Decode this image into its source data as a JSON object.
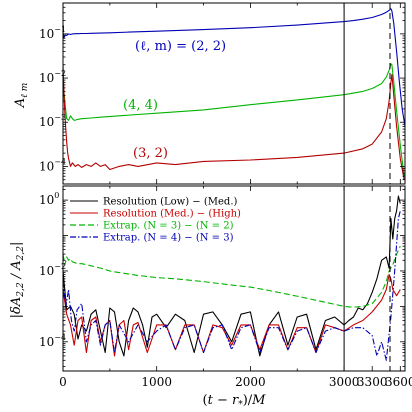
{
  "chart_data": [
    {
      "panel": "top",
      "type": "line",
      "ylabel": "A_{ℓ m}",
      "yscale": "log",
      "ylim": [
        4e-05,
        0.5
      ],
      "yticks": [
        0.0001,
        0.001,
        0.01,
        0.1
      ],
      "ytick_labels": [
        "10",
        "10",
        "10",
        "10"
      ],
      "ytick_exponents": [
        "−4",
        "−3",
        "−2",
        "−1"
      ],
      "xlim": [
        0,
        3650
      ],
      "vlines": [
        {
          "x": 3000,
          "style": "solid"
        },
        {
          "x": 3490,
          "style": "dashed"
        }
      ],
      "series": [
        {
          "name": "(ℓ, m) = (2, 2)",
          "color": "#0000b4",
          "x": [
            0,
            10,
            20,
            40,
            60,
            80,
            100,
            130,
            160,
            200,
            250,
            300,
            400,
            500,
            700,
            1000,
            1500,
            2000,
            2500,
            3000,
            3100,
            3200,
            3300,
            3400,
            3450,
            3480,
            3500,
            3510,
            3530,
            3560,
            3590,
            3620,
            3650
          ],
          "values": [
            0.11,
            0.08,
            0.095,
            0.092,
            0.1,
            0.097,
            0.1,
            0.101,
            0.101,
            0.102,
            0.102,
            0.103,
            0.104,
            0.106,
            0.11,
            0.115,
            0.125,
            0.138,
            0.158,
            0.19,
            0.2,
            0.215,
            0.235,
            0.275,
            0.31,
            0.34,
            0.37,
            0.33,
            0.17,
            0.04,
            0.008,
            0.002,
            0.0008
          ]
        },
        {
          "name": "(4, 4)",
          "color": "#00b400",
          "x": [
            0,
            10,
            20,
            30,
            40,
            60,
            80,
            100,
            120,
            150,
            200,
            300,
            400,
            600,
            1000,
            1500,
            2000,
            2500,
            3000,
            3200,
            3300,
            3400,
            3450,
            3480,
            3500,
            3510,
            3530,
            3560,
            3600,
            3640
          ],
          "values": [
            0.01,
            0.005,
            0.003,
            0.0018,
            0.0012,
            0.0011,
            0.0014,
            0.0012,
            0.0011,
            0.00115,
            0.0012,
            0.00125,
            0.0013,
            0.0014,
            0.0016,
            0.0019,
            0.0025,
            0.0032,
            0.0042,
            0.005,
            0.0058,
            0.0075,
            0.0105,
            0.015,
            0.021,
            0.02,
            0.008,
            0.0018,
            0.0003,
            6e-05
          ]
        },
        {
          "name": "(3, 2)",
          "color": "#b40000",
          "x": [
            0,
            10,
            20,
            30,
            40,
            50,
            60,
            80,
            100,
            130,
            160,
            200,
            250,
            300,
            350,
            400,
            450,
            500,
            600,
            700,
            800,
            1000,
            1200,
            1500,
            2000,
            2500,
            3000,
            3200,
            3300,
            3400,
            3450,
            3480,
            3500,
            3510,
            3530,
            3560,
            3600,
            3640
          ],
          "values": [
            0.02,
            0.005,
            0.0015,
            0.0007,
            0.00035,
            0.0002,
            0.00015,
            0.0001,
            0.00012,
            0.0001,
            0.00011,
            9.5e-05,
            0.00011,
            0.0001,
            0.00012,
            0.0001,
            0.00011,
            8.5e-05,
            0.0001,
            0.00011,
            0.0001,
            0.00012,
            0.00011,
            0.00013,
            0.00014,
            0.00016,
            0.0002,
            0.00025,
            0.00032,
            0.0006,
            0.0012,
            0.003,
            0.008,
            0.012,
            0.004,
            0.0008,
            0.00015,
            5e-05
          ]
        }
      ]
    },
    {
      "panel": "bottom",
      "type": "line",
      "xlabel": "(t − r_*)/M",
      "ylabel": "|δA_{2,2} / A_{2,2}|",
      "yscale": "log",
      "ylim": [
        1.5e-05,
        2.5
      ],
      "yticks": [
        0.0001,
        0.01,
        1
      ],
      "ytick_labels": [
        "10",
        "10",
        "10"
      ],
      "ytick_exponents": [
        "−4",
        "−2",
        "0"
      ],
      "xlim": [
        0,
        3650
      ],
      "xticks": [
        0,
        1000,
        2000,
        3000,
        3300,
        3600
      ],
      "xtick_labels": [
        "0",
        "1000",
        "2000",
        "3000",
        "3300",
        "3600"
      ],
      "vlines": [
        {
          "x": 3000,
          "style": "solid"
        },
        {
          "x": 3490,
          "style": "dashed"
        }
      ],
      "legend_position": "top-left",
      "series": [
        {
          "name": "Resolution (Low) − (Med.)",
          "color": "#000000",
          "dash": "solid",
          "x": [
            0,
            40,
            80,
            120,
            160,
            200,
            250,
            300,
            350,
            400,
            450,
            500,
            550,
            600,
            650,
            700,
            750,
            800,
            850,
            900,
            950,
            1000,
            1100,
            1200,
            1300,
            1400,
            1500,
            1600,
            1700,
            1800,
            1900,
            2000,
            2100,
            2200,
            2300,
            2400,
            2500,
            2600,
            2700,
            2800,
            2900,
            3000,
            3050,
            3100,
            3150,
            3200,
            3250,
            3300,
            3350,
            3400,
            3450,
            3480,
            3500,
            3520,
            3540,
            3560,
            3580,
            3600
          ],
          "values": [
            0.01,
            0.0008,
            0.001,
            0.0006,
            0.00012,
            0.0003,
            0.0002,
            0.0006,
            0.0008,
            0.0002,
            5e-05,
            0.0009,
            0.0007,
            0.0001,
            4e-05,
            0.0004,
            0.0009,
            0.0007,
            0.0003,
            7e-05,
            0.0005,
            0.0006,
            0.00025,
            0.0006,
            0.0004,
            5e-05,
            0.0006,
            0.0007,
            0.0003,
            0.0001,
            0.0006,
            0.0007,
            4e-05,
            0.0003,
            0.0007,
            8e-05,
            0.0005,
            0.0006,
            6e-05,
            0.0004,
            0.0005,
            0.0003,
            0.0004,
            0.0005,
            0.0009,
            0.0008,
            0.0012,
            0.0025,
            0.006,
            0.02,
            0.025,
            0.012,
            0.3,
            0.08,
            0.3,
            0.5,
            1.3,
            0.8
          ]
        },
        {
          "name": "Resolution (Med.) − (High)",
          "color": "#c80000",
          "dash": "solid",
          "x": [
            0,
            40,
            80,
            120,
            160,
            200,
            250,
            300,
            350,
            400,
            450,
            500,
            550,
            600,
            650,
            700,
            750,
            800,
            900,
            1000,
            1100,
            1200,
            1300,
            1400,
            1500,
            1600,
            1700,
            1800,
            1900,
            2000,
            2100,
            2200,
            2300,
            2400,
            2500,
            2600,
            2700,
            2800,
            2900,
            3000,
            3100,
            3200,
            3300,
            3400,
            3450,
            3480,
            3500,
            3520,
            3560,
            3600
          ],
          "values": [
            0.003,
            0.0006,
            0.0003,
            8e-05,
            0.0004,
            0.0005,
            5e-05,
            0.0004,
            0.0005,
            0.0001,
            0.0003,
            0.0004,
            4e-05,
            0.0003,
            0.0004,
            6e-05,
            0.0003,
            0.00035,
            5e-05,
            0.0003,
            0.0003,
            6e-05,
            0.0003,
            0.0003,
            5e-05,
            0.0003,
            0.00025,
            8e-05,
            0.0003,
            0.0003,
            6e-05,
            0.0003,
            0.0003,
            6e-05,
            0.00025,
            0.00025,
            5e-05,
            0.0003,
            0.00025,
            0.0002,
            0.0003,
            0.0004,
            0.0007,
            0.0015,
            0.003,
            0.008,
            0.006,
            0.003,
            0.002,
            0.003
          ]
        },
        {
          "name": "Extrap. (N = 3) − (N = 2)",
          "color": "#00b400",
          "dash": "dashed",
          "x": [
            0,
            20,
            40,
            60,
            80,
            100,
            130,
            160,
            200,
            250,
            300,
            400,
            500,
            600,
            800,
            1000,
            1200,
            1500,
            1800,
            2000,
            2200,
            2400,
            2600,
            2800,
            3000,
            3100,
            3200,
            3300,
            3400,
            3450,
            3480,
            3500,
            3520,
            3560,
            3600
          ],
          "values": [
            0.03,
            0.015,
            0.025,
            0.02,
            0.022,
            0.018,
            0.017,
            0.016,
            0.016,
            0.015,
            0.014,
            0.012,
            0.01,
            0.009,
            0.0075,
            0.0065,
            0.006,
            0.005,
            0.004,
            0.0035,
            0.0028,
            0.0022,
            0.0017,
            0.0013,
            0.001,
            0.00095,
            0.001,
            0.0012,
            0.0025,
            0.005,
            0.01,
            0.012,
            0.015,
            0.03,
            0.05
          ]
        },
        {
          "name": "Extrap. (N = 4) − (N = 3)",
          "color": "#0000b4",
          "dash": "dashdot",
          "x": [
            0,
            30,
            60,
            90,
            120,
            150,
            200,
            250,
            300,
            350,
            400,
            450,
            500,
            550,
            600,
            700,
            800,
            900,
            1000,
            1100,
            1200,
            1300,
            1400,
            1500,
            1600,
            1700,
            1800,
            1900,
            2000,
            2100,
            2200,
            2300,
            2400,
            2500,
            2600,
            2700,
            2800,
            2900,
            3000,
            3100,
            3200,
            3300,
            3350,
            3400,
            3450,
            3500,
            3540,
            3580,
            3600
          ],
          "values": [
            0.005,
            0.001,
            0.003,
            0.0004,
            0.0002,
            0.0008,
            0.0012,
            0.0001,
            0.0003,
            0.0004,
            8e-05,
            0.0003,
            0.0004,
            5e-05,
            0.0003,
            0.0001,
            0.0003,
            0.0001,
            0.0002,
            0.0003,
            6e-05,
            0.00025,
            0.0003,
            5e-05,
            0.00025,
            0.0003,
            6e-05,
            0.00025,
            0.0003,
            5e-05,
            0.00025,
            0.00025,
            6e-05,
            0.0002,
            0.00025,
            5e-05,
            0.0002,
            0.00025,
            0.0002,
            0.00025,
            0.00025,
            0.00015,
            4e-05,
            0.0001,
            3e-05,
            0.0005,
            0.01,
            0.3,
            0.5
          ]
        }
      ]
    }
  ]
}
